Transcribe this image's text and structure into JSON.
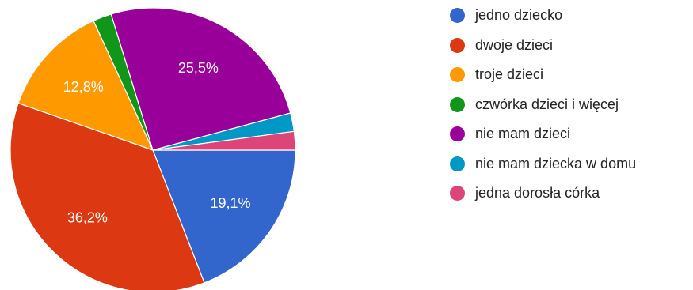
{
  "chart_data": {
    "type": "pie",
    "start_angle_deg": 90,
    "direction": "clockwise",
    "slices": [
      {
        "label": "jedno dziecko",
        "value": 19.1,
        "value_label": "19,1%",
        "color": "#3366cc"
      },
      {
        "label": "dwoje dzieci",
        "value": 36.2,
        "value_label": "36,2%",
        "color": "#dc3912"
      },
      {
        "label": "troje dzieci",
        "value": 12.8,
        "value_label": "12,8%",
        "color": "#ff9900"
      },
      {
        "label": "czwórka dzieci i więcej",
        "value": 2.1,
        "value_label": "",
        "color": "#109618"
      },
      {
        "label": "nie mam dzieci",
        "value": 25.5,
        "value_label": "25,5%",
        "color": "#990099"
      },
      {
        "label": "nie mam dziecka w domu",
        "value": 2.1,
        "value_label": "",
        "color": "#0099c6"
      },
      {
        "label": "jedna dorosła córka",
        "value": 2.1,
        "value_label": "",
        "color": "#dd4477"
      }
    ],
    "legend_position": "right"
  }
}
